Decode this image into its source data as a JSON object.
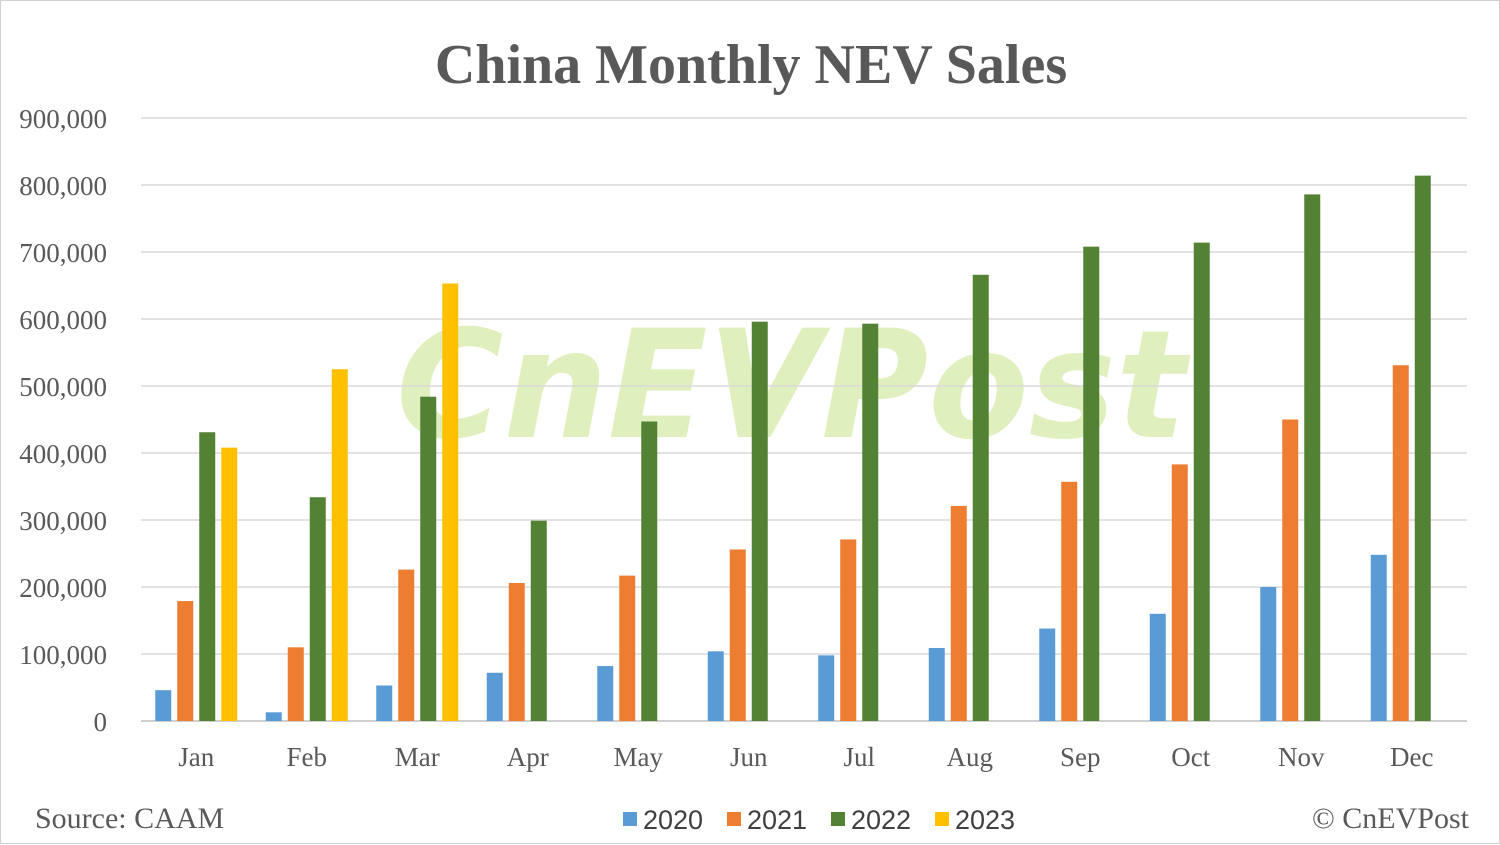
{
  "chart_data": {
    "type": "bar",
    "title": "China Monthly NEV Sales",
    "categories": [
      "Jan",
      "Feb",
      "Mar",
      "Apr",
      "May",
      "Jun",
      "Jul",
      "Aug",
      "Sep",
      "Oct",
      "Nov",
      "Dec"
    ],
    "series": [
      {
        "name": "2020",
        "color": "#5b9bd5",
        "values": [
          46000,
          13000,
          53000,
          72000,
          82000,
          104000,
          98000,
          109000,
          138000,
          160000,
          200000,
          248000
        ]
      },
      {
        "name": "2021",
        "color": "#ed7d31",
        "values": [
          179000,
          110000,
          226000,
          206000,
          217000,
          256000,
          271000,
          321000,
          357000,
          383000,
          450000,
          531000
        ]
      },
      {
        "name": "2022",
        "color": "#548235",
        "values": [
          431000,
          334000,
          484000,
          299000,
          447000,
          596000,
          593000,
          666000,
          708000,
          714000,
          786000,
          814000
        ]
      },
      {
        "name": "2023",
        "color": "#ffc000",
        "values": [
          408000,
          525000,
          653000,
          null,
          null,
          null,
          null,
          null,
          null,
          null,
          null,
          null
        ]
      }
    ],
    "ylim": [
      0,
      900000
    ],
    "yticks": [
      0,
      100000,
      200000,
      300000,
      400000,
      500000,
      600000,
      700000,
      800000,
      900000
    ],
    "ytick_labels": [
      "0",
      "100,000",
      "200,000",
      "300,000",
      "400,000",
      "500,000",
      "600,000",
      "700,000",
      "800,000",
      "900,000"
    ],
    "grid": true,
    "legend_position": "bottom",
    "source": "Source: CAAM",
    "credit": "© CnEVPost",
    "watermark": "CnEVPost"
  }
}
